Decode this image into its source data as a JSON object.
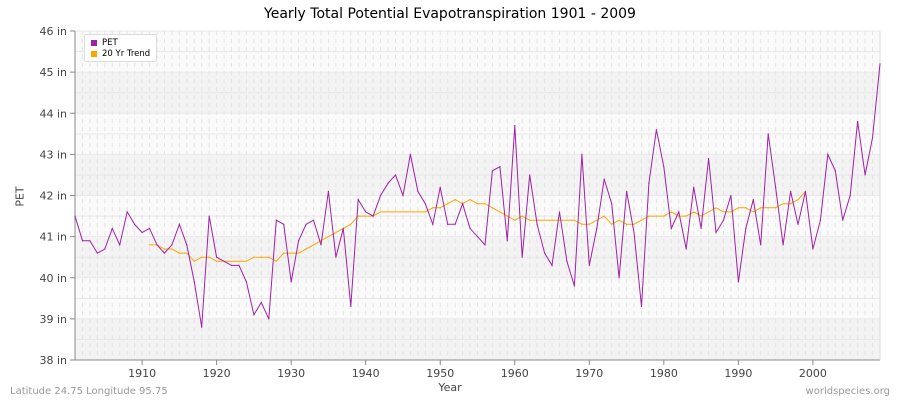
{
  "chart_data": {
    "type": "line",
    "title": "Yearly Total Potential Evapotranspiration 1901 - 2009",
    "xlabel": "Year",
    "ylabel": "PET",
    "ylim": [
      38,
      46
    ],
    "xlim": [
      1901,
      2009
    ],
    "y_ticks": [
      "38 in",
      "39 in",
      "40 in",
      "41 in",
      "42 in",
      "43 in",
      "44 in",
      "45 in",
      "46 in"
    ],
    "x_ticks": [
      "1910",
      "1920",
      "1930",
      "1940",
      "1950",
      "1960",
      "1970",
      "1980",
      "1990",
      "2000"
    ],
    "legend_position": "top-left",
    "grid": true,
    "series": [
      {
        "name": "PET",
        "color": "#a020a8",
        "x_first": 1901,
        "x_last": 2009,
        "values": [
          41.5,
          40.9,
          40.9,
          40.6,
          40.7,
          41.2,
          40.8,
          41.6,
          41.3,
          41.1,
          41.2,
          40.8,
          40.6,
          40.8,
          41.3,
          40.8,
          39.9,
          38.8,
          41.5,
          40.5,
          40.4,
          40.3,
          40.3,
          39.9,
          39.1,
          39.4,
          39.0,
          41.4,
          41.3,
          39.9,
          40.9,
          41.3,
          41.4,
          40.8,
          42.1,
          40.5,
          41.2,
          39.3,
          41.9,
          41.6,
          41.5,
          42.0,
          42.3,
          42.5,
          42.0,
          43.0,
          42.1,
          41.8,
          41.3,
          42.2,
          41.3,
          41.3,
          41.8,
          41.2,
          41.0,
          40.8,
          42.6,
          42.7,
          40.9,
          43.7,
          40.5,
          42.5,
          41.3,
          40.6,
          40.3,
          41.6,
          40.4,
          39.8,
          43.0,
          40.3,
          41.2,
          42.4,
          41.8,
          40.0,
          42.1,
          41.1,
          39.3,
          42.3,
          43.6,
          42.7,
          41.2,
          41.6,
          40.7,
          42.2,
          41.2,
          42.9,
          41.1,
          41.4,
          42.0,
          39.9,
          41.2,
          41.9,
          40.8,
          43.5,
          42.2,
          40.8,
          42.1,
          41.3,
          42.1,
          40.7,
          41.4,
          43.0,
          42.6,
          41.4,
          42.0,
          43.8,
          42.5,
          43.4,
          45.2
        ]
      },
      {
        "name": "20 Yr Trend",
        "color": "#ffa500",
        "x_first": 1911,
        "x_last": 1999,
        "values": [
          40.8,
          40.8,
          40.7,
          40.7,
          40.6,
          40.6,
          40.4,
          40.5,
          40.5,
          40.4,
          40.4,
          40.4,
          40.4,
          40.4,
          40.5,
          40.5,
          40.5,
          40.4,
          40.6,
          40.6,
          40.6,
          40.7,
          40.8,
          40.9,
          41.0,
          41.1,
          41.2,
          41.3,
          41.5,
          41.5,
          41.5,
          41.6,
          41.6,
          41.6,
          41.6,
          41.6,
          41.6,
          41.6,
          41.7,
          41.7,
          41.8,
          41.9,
          41.8,
          41.9,
          41.8,
          41.8,
          41.7,
          41.6,
          41.5,
          41.4,
          41.5,
          41.4,
          41.4,
          41.4,
          41.4,
          41.4,
          41.4,
          41.4,
          41.3,
          41.3,
          41.4,
          41.5,
          41.3,
          41.4,
          41.3,
          41.3,
          41.4,
          41.5,
          41.5,
          41.5,
          41.6,
          41.5,
          41.5,
          41.6,
          41.5,
          41.6,
          41.7,
          41.6,
          41.6,
          41.7,
          41.7,
          41.6,
          41.7,
          41.7,
          41.7,
          41.8,
          41.8,
          41.9,
          42.1
        ]
      }
    ]
  },
  "footer": {
    "left": "Latitude 24.75 Longitude 95.75",
    "right": "worldspecies.org"
  }
}
